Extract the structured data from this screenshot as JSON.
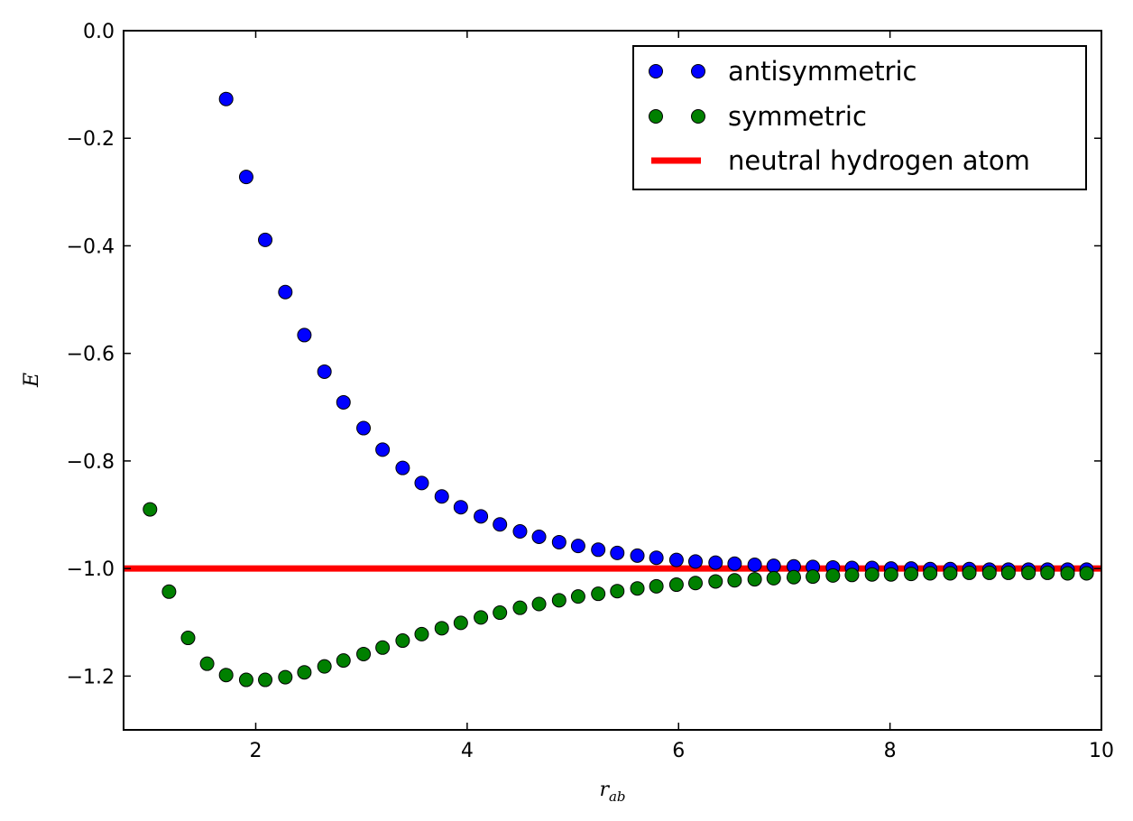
{
  "chart_data": {
    "type": "scatter",
    "xlabel": "r",
    "xlabel_subscript": "ab",
    "ylabel": "E",
    "xlim": [
      0.75,
      10
    ],
    "ylim": [
      -1.3,
      0.0
    ],
    "xticks": [
      2,
      4,
      6,
      8,
      10
    ],
    "yticks": [
      0.0,
      -0.2,
      -0.4,
      -0.6,
      -0.8,
      -1.0,
      -1.2
    ],
    "xtick_labels": [
      "2",
      "4",
      "6",
      "8",
      "10"
    ],
    "ytick_labels": [
      "0.0",
      "−0.2",
      "−0.4",
      "−0.6",
      "−0.8",
      "−1.0",
      "−1.2"
    ],
    "legend_position": "top-right",
    "series": [
      {
        "name": "antisymmetric",
        "kind": "points",
        "color": "#0000ff",
        "x": [
          1.72,
          1.91,
          2.09,
          2.28,
          2.46,
          2.65,
          2.83,
          3.02,
          3.2,
          3.39,
          3.57,
          3.76,
          3.94,
          4.13,
          4.31,
          4.5,
          4.68,
          4.87,
          5.05,
          5.24,
          5.42,
          5.61,
          5.79,
          5.98,
          6.16,
          6.35,
          6.53,
          6.72,
          6.9,
          7.09,
          7.27,
          7.46,
          7.64,
          7.83,
          8.01,
          8.2,
          8.38,
          8.57,
          8.75,
          8.94,
          9.12,
          9.31,
          9.49,
          9.68,
          9.86
        ],
        "y": [
          -0.127,
          -0.272,
          -0.389,
          -0.486,
          -0.566,
          -0.634,
          -0.691,
          -0.739,
          -0.779,
          -0.813,
          -0.841,
          -0.866,
          -0.886,
          -0.903,
          -0.918,
          -0.931,
          -0.941,
          -0.951,
          -0.958,
          -0.965,
          -0.971,
          -0.976,
          -0.98,
          -0.984,
          -0.987,
          -0.989,
          -0.991,
          -0.993,
          -0.995,
          -0.996,
          -0.997,
          -0.998,
          -0.999,
          -0.999,
          -1.0,
          -1.0,
          -1.001,
          -1.001,
          -1.001,
          -1.002,
          -1.002,
          -1.002,
          -1.002,
          -1.002,
          -1.002
        ]
      },
      {
        "name": "symmetric",
        "kind": "points",
        "color": "#008000",
        "x": [
          1.0,
          1.18,
          1.36,
          1.54,
          1.72,
          1.91,
          2.09,
          2.28,
          2.46,
          2.65,
          2.83,
          3.02,
          3.2,
          3.39,
          3.57,
          3.76,
          3.94,
          4.13,
          4.31,
          4.5,
          4.68,
          4.87,
          5.05,
          5.24,
          5.42,
          5.61,
          5.79,
          5.98,
          6.16,
          6.35,
          6.53,
          6.72,
          6.9,
          7.09,
          7.27,
          7.46,
          7.64,
          7.83,
          8.01,
          8.2,
          8.38,
          8.57,
          8.75,
          8.94,
          9.12,
          9.31,
          9.49,
          9.68,
          9.86
        ],
        "y": [
          -0.89,
          -1.043,
          -1.129,
          -1.177,
          -1.198,
          -1.207,
          -1.207,
          -1.202,
          -1.193,
          -1.182,
          -1.171,
          -1.159,
          -1.147,
          -1.134,
          -1.122,
          -1.111,
          -1.101,
          -1.091,
          -1.082,
          -1.073,
          -1.066,
          -1.059,
          -1.052,
          -1.047,
          -1.042,
          -1.037,
          -1.033,
          -1.03,
          -1.027,
          -1.024,
          -1.022,
          -1.02,
          -1.018,
          -1.016,
          -1.015,
          -1.013,
          -1.012,
          -1.011,
          -1.011,
          -1.01,
          -1.009,
          -1.009,
          -1.008,
          -1.008,
          -1.008,
          -1.008,
          -1.008,
          -1.009,
          -1.009
        ]
      },
      {
        "name": "neutral hydrogen atom",
        "kind": "hline",
        "color": "#ff0000",
        "y": -1.0
      }
    ]
  }
}
